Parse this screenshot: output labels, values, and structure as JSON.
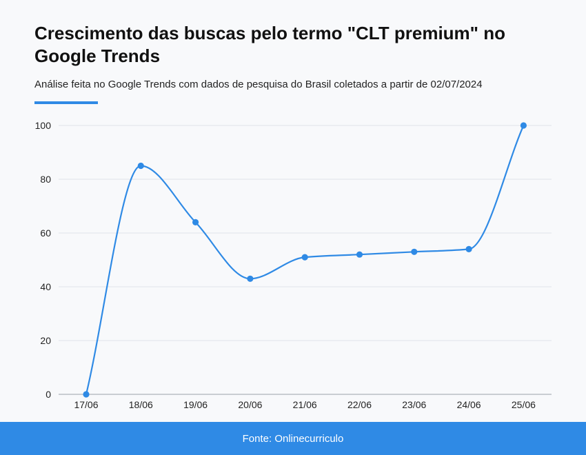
{
  "header": {
    "title": "Crescimento das buscas pelo termo \"CLT premium\" no Google Trends",
    "subtitle": "Análise feita no Google Trends com dados de pesquisa do Brasil coletados a partir de 02/07/2024"
  },
  "footer": {
    "source": "Fonte: Onlinecurriculo"
  },
  "colors": {
    "accent": "#2f8ae5",
    "grid": "#dfe3e8",
    "background": "#f8f9fb"
  },
  "chart_data": {
    "type": "line",
    "title": "Crescimento das buscas pelo termo \"CLT premium\" no Google Trends",
    "xlabel": "",
    "ylabel": "",
    "categories": [
      "17/06",
      "18/06",
      "19/06",
      "20/06",
      "21/06",
      "22/06",
      "23/06",
      "24/06",
      "25/06"
    ],
    "series": [
      {
        "name": "CLT premium",
        "values": [
          0,
          85,
          64,
          43,
          51,
          52,
          53,
          54,
          100
        ]
      }
    ],
    "ylim": [
      0,
      100
    ],
    "yticks": [
      0,
      20,
      40,
      60,
      80,
      100
    ],
    "grid": true,
    "smooth": true
  }
}
